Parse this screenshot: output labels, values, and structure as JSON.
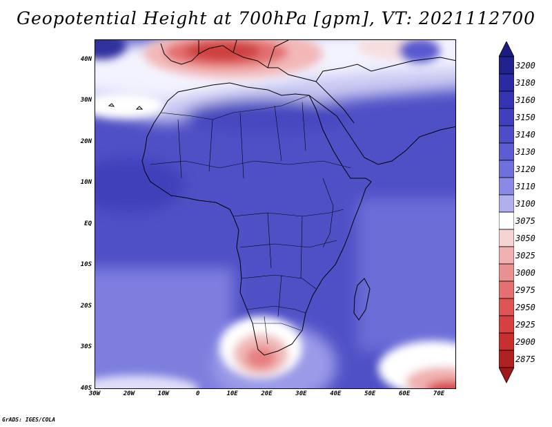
{
  "title": "Geopotential Height at 700hPa [gpm], VT: 2021112700",
  "credit": "GrADS: IGES/COLA",
  "map": {
    "projection": "lat-lon",
    "lon_range": [
      -30,
      75
    ],
    "lat_range": [
      -40,
      45
    ],
    "lat_ticks": [
      {
        "value": 40,
        "label": "40N"
      },
      {
        "value": 30,
        "label": "30N"
      },
      {
        "value": 20,
        "label": "20N"
      },
      {
        "value": 10,
        "label": "10N"
      },
      {
        "value": 0,
        "label": "EQ"
      },
      {
        "value": -10,
        "label": "10S"
      },
      {
        "value": -20,
        "label": "20S"
      },
      {
        "value": -30,
        "label": "30S"
      },
      {
        "value": -40,
        "label": "40S"
      }
    ],
    "lon_ticks": [
      {
        "value": -30,
        "label": "30W"
      },
      {
        "value": -20,
        "label": "20W"
      },
      {
        "value": -10,
        "label": "10W"
      },
      {
        "value": 0,
        "label": "0"
      },
      {
        "value": 10,
        "label": "10E"
      },
      {
        "value": 20,
        "label": "20E"
      },
      {
        "value": 30,
        "label": "30E"
      },
      {
        "value": 40,
        "label": "40E"
      },
      {
        "value": 50,
        "label": "50E"
      },
      {
        "value": 60,
        "label": "60E"
      },
      {
        "value": 70,
        "label": "70E"
      }
    ]
  },
  "colorbar": {
    "levels": [
      {
        "label": "3200",
        "color": "#22228f"
      },
      {
        "label": "3180",
        "color": "#2a2aa3"
      },
      {
        "label": "3160",
        "color": "#3535b3"
      },
      {
        "label": "3150",
        "color": "#4040be"
      },
      {
        "label": "3140",
        "color": "#4d4dc8"
      },
      {
        "label": "3130",
        "color": "#5c5cd2"
      },
      {
        "label": "3120",
        "color": "#7070dc"
      },
      {
        "label": "3110",
        "color": "#8a8ae6"
      },
      {
        "label": "3100",
        "color": "#b0b0ee"
      },
      {
        "label": "3075",
        "color": "#ffffff"
      },
      {
        "label": "3050",
        "color": "#f7d4d4"
      },
      {
        "label": "3025",
        "color": "#f0b0b0"
      },
      {
        "label": "3000",
        "color": "#ea9090"
      },
      {
        "label": "2975",
        "color": "#e47070"
      },
      {
        "label": "2950",
        "color": "#de5454"
      },
      {
        "label": "2925",
        "color": "#d64040"
      },
      {
        "label": "2900",
        "color": "#c83030"
      },
      {
        "label": "2875",
        "color": "#b02020"
      }
    ],
    "top_arrow_color": "#1c1c80",
    "bottom_arrow_color": "#a01818"
  }
}
